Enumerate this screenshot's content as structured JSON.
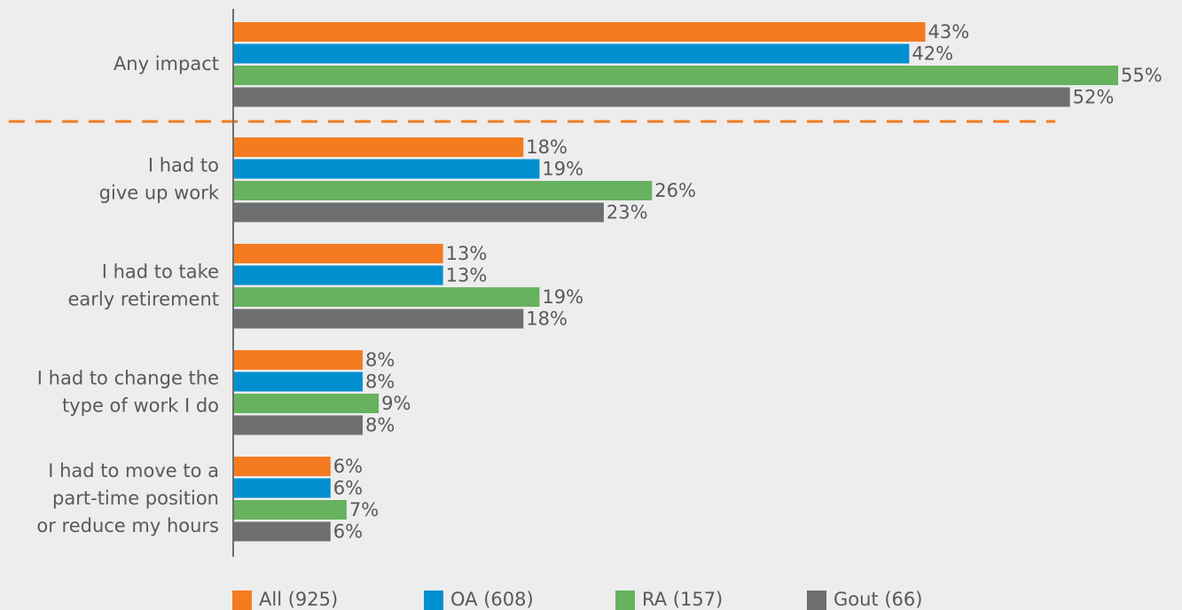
{
  "chart_data": {
    "type": "bar",
    "orientation": "horizontal",
    "categories": [
      [
        "Any impact"
      ],
      [
        "I had to",
        "give up work"
      ],
      [
        "I had to take",
        "early retirement"
      ],
      [
        "I had to change the",
        "type of work I do"
      ],
      [
        "I had to move to a",
        "part-time position",
        "or reduce my hours"
      ]
    ],
    "series": [
      {
        "name": "All (925)",
        "color": "#f47b20",
        "values": [
          43,
          18,
          13,
          8,
          6
        ],
        "value_labels": [
          "43%",
          "18%",
          "13%",
          "8%",
          "6%"
        ]
      },
      {
        "name": "OA (608)",
        "color": "#0090d0",
        "values": [
          42,
          19,
          13,
          8,
          6
        ],
        "value_labels": [
          "42%",
          "19%",
          "13%",
          "8%",
          "6%"
        ]
      },
      {
        "name": "RA (157)",
        "color": "#66b25e",
        "values": [
          55,
          26,
          19,
          9,
          7
        ],
        "value_labels": [
          "55%",
          "26%",
          "19%",
          "9%",
          "7%"
        ]
      },
      {
        "name": "Gout (66)",
        "color": "#6d6e70",
        "values": [
          52,
          23,
          18,
          8,
          6
        ],
        "value_labels": [
          "52%",
          "23%",
          "18%",
          "8%",
          "6%"
        ]
      }
    ],
    "legend": "bottom"
  }
}
